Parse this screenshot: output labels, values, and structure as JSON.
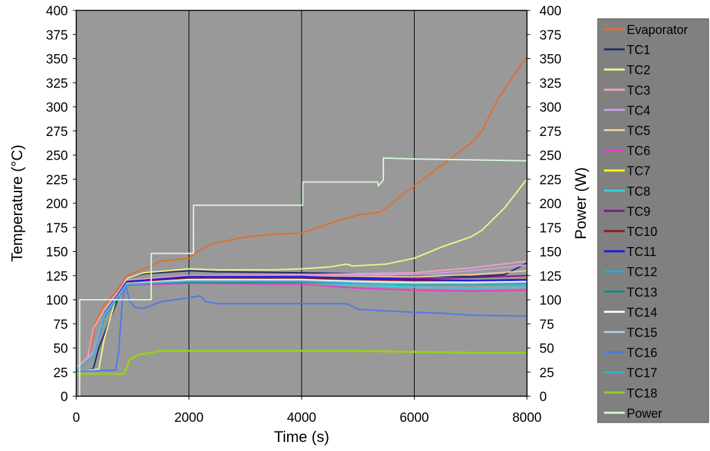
{
  "chart_data": {
    "type": "line",
    "xlabel": "Time (s)",
    "ylabel_left": "Temperature (°C)",
    "ylabel_right": "Power (W)",
    "xlim": [
      0,
      8000
    ],
    "ylim": [
      0,
      400
    ],
    "y2lim": [
      0,
      400
    ],
    "x_ticks": [
      0,
      2000,
      4000,
      6000,
      8000
    ],
    "y_ticks": [
      0,
      25,
      50,
      75,
      100,
      125,
      150,
      175,
      200,
      225,
      250,
      275,
      300,
      325,
      350,
      375,
      400
    ],
    "y2_ticks": [
      0,
      25,
      50,
      75,
      100,
      125,
      150,
      175,
      200,
      225,
      250,
      275,
      300,
      325,
      350,
      375,
      400
    ],
    "plot_background": "#999999",
    "grid": {
      "x": true,
      "y": false
    },
    "legend_position": "right",
    "legend_background": "#808080",
    "series": [
      {
        "name": "Evaporator",
        "color": "#e46c2a",
        "axis": "left",
        "x": [
          0,
          150,
          250,
          350,
          500,
          700,
          900,
          1200,
          1500,
          2000,
          2150,
          2400,
          3000,
          3500,
          4000,
          4300,
          4700,
          5000,
          5400,
          5600,
          6000,
          6500,
          7000,
          7200,
          7500,
          8000
        ],
        "y": [
          30,
          32,
          50,
          78,
          95,
          108,
          125,
          132,
          140,
          143,
          150,
          158,
          165,
          168,
          169,
          175,
          183,
          188,
          191,
          200,
          218,
          240,
          262,
          275,
          310,
          352
        ]
      },
      {
        "name": "TC1",
        "color": "#1f2a6b",
        "axis": "left",
        "x": [
          0,
          300,
          400,
          600,
          800,
          900,
          1200,
          2000,
          2500,
          4000,
          5000,
          6000,
          7000,
          7600,
          8000
        ],
        "y": [
          26,
          28,
          50,
          80,
          110,
          122,
          127,
          130,
          129,
          128,
          127,
          125,
          124,
          126,
          138
        ]
      },
      {
        "name": "TC2",
        "color": "#f2f28a",
        "axis": "left",
        "x": [
          0,
          400,
          500,
          700,
          900,
          1200,
          2000,
          2500,
          3500,
          4000,
          4500,
          4800,
          4900,
          5500,
          6000,
          6500,
          7000,
          7200,
          7600,
          8000
        ],
        "y": [
          26,
          28,
          60,
          100,
          122,
          128,
          132,
          131,
          131,
          132,
          134,
          137,
          135,
          137,
          143,
          155,
          165,
          172,
          195,
          225
        ]
      },
      {
        "name": "TC3",
        "color": "#f0a0c8",
        "axis": "left",
        "x": [
          0,
          200,
          300,
          500,
          900,
          2000,
          4000,
          5000,
          6000,
          7000,
          8000
        ],
        "y": [
          30,
          40,
          70,
          90,
          120,
          125,
          126,
          127,
          128,
          133,
          140
        ]
      },
      {
        "name": "TC4",
        "color": "#c8a0e6",
        "axis": "left",
        "x": [
          0,
          300,
          500,
          900,
          2000,
          4000,
          5000,
          6000,
          7000,
          8000
        ],
        "y": [
          28,
          45,
          85,
          118,
          124,
          124,
          126,
          126,
          130,
          136
        ]
      },
      {
        "name": "TC5",
        "color": "#f2c8a0",
        "axis": "left",
        "x": [
          0,
          300,
          500,
          900,
          2000,
          4000,
          5000,
          6000,
          7000,
          8000
        ],
        "y": [
          28,
          40,
          85,
          118,
          122,
          122,
          124,
          124,
          126,
          130
        ]
      },
      {
        "name": "TC6",
        "color": "#e63cc8",
        "axis": "left",
        "x": [
          0,
          300,
          500,
          900,
          2000,
          4000,
          5000,
          6000,
          7000,
          8000
        ],
        "y": [
          28,
          40,
          82,
          115,
          117,
          116,
          112,
          110,
          109,
          110
        ]
      },
      {
        "name": "TC7",
        "color": "#ffff00",
        "axis": "left",
        "x": [
          0,
          300,
          500,
          900,
          2000,
          4000,
          5000,
          6000,
          7000,
          8000
        ],
        "y": [
          28,
          40,
          84,
          117,
          120,
          120,
          118,
          117,
          116,
          117
        ]
      },
      {
        "name": "TC8",
        "color": "#2ed2e0",
        "axis": "left",
        "x": [
          0,
          300,
          500,
          900,
          2000,
          4000,
          5000,
          6000,
          7000,
          8000
        ],
        "y": [
          28,
          40,
          82,
          116,
          118,
          118,
          115,
          113,
          112,
          113
        ]
      },
      {
        "name": "TC9",
        "color": "#7a1a8a",
        "axis": "left",
        "x": [
          0,
          300,
          500,
          900,
          2000,
          4000,
          5000,
          6000,
          7000,
          8000
        ],
        "y": [
          28,
          40,
          84,
          118,
          123,
          123,
          123,
          122,
          123,
          125
        ]
      },
      {
        "name": "TC10",
        "color": "#8b1a1a",
        "axis": "left",
        "x": [
          0,
          300,
          500,
          900,
          2000,
          4000,
          5000,
          6000,
          7000,
          8000
        ],
        "y": [
          28,
          40,
          84,
          118,
          122,
          122,
          121,
          120,
          120,
          121
        ]
      },
      {
        "name": "TC11",
        "color": "#1a1ae6",
        "axis": "left",
        "x": [
          0,
          300,
          500,
          900,
          2000,
          4000,
          5000,
          6000,
          7000,
          8000
        ],
        "y": [
          28,
          40,
          85,
          119,
          124,
          124,
          122,
          121,
          120,
          120
        ]
      },
      {
        "name": "TC12",
        "color": "#2aa8d8",
        "axis": "left",
        "x": [
          0,
          300,
          500,
          900,
          2000,
          4000,
          5000,
          6000,
          7000,
          8000
        ],
        "y": [
          28,
          40,
          82,
          116,
          119,
          119,
          117,
          116,
          116,
          117
        ]
      },
      {
        "name": "TC13",
        "color": "#1a8a7a",
        "axis": "left",
        "x": [
          0,
          300,
          500,
          900,
          2000,
          4000,
          5000,
          6000,
          7000,
          8000
        ],
        "y": [
          28,
          40,
          82,
          116,
          118,
          118,
          117,
          116,
          116,
          117
        ]
      },
      {
        "name": "TC14",
        "color": "#f0ffff",
        "axis": "left",
        "x": [
          0,
          300,
          500,
          900,
          2000,
          4000,
          5000,
          6000,
          7000,
          8000
        ],
        "y": [
          28,
          40,
          84,
          117,
          121,
          121,
          119,
          118,
          118,
          119
        ]
      },
      {
        "name": "TC15",
        "color": "#a8c8ec",
        "axis": "left",
        "x": [
          0,
          300,
          500,
          900,
          2000,
          4000,
          5000,
          6000,
          7000,
          8000
        ],
        "y": [
          28,
          40,
          84,
          117,
          120,
          120,
          118,
          117,
          117,
          118
        ]
      },
      {
        "name": "TC16",
        "color": "#4a7ae6",
        "axis": "left",
        "x": [
          0,
          700,
          750,
          820,
          880,
          950,
          1050,
          1200,
          1500,
          2000,
          2200,
          2300,
          2500,
          3000,
          4000,
          4800,
          5000,
          6000,
          6500,
          7000,
          8000
        ],
        "y": [
          26,
          27,
          45,
          100,
          115,
          98,
          92,
          91,
          98,
          102,
          104,
          98,
          96,
          96,
          96,
          96,
          90,
          87,
          86,
          84,
          83
        ]
      },
      {
        "name": "TC17",
        "color": "#38b4c4",
        "axis": "left",
        "x": [
          0,
          300,
          500,
          900,
          2000,
          4000,
          5000,
          6000,
          7000,
          8000
        ],
        "y": [
          28,
          40,
          83,
          116,
          119,
          119,
          117,
          115,
          115,
          116
        ]
      },
      {
        "name": "TC18",
        "color": "#99cc22",
        "axis": "left",
        "x": [
          0,
          850,
          950,
          1100,
          1500,
          2000,
          3000,
          4000,
          5000,
          6000,
          7000,
          8000
        ],
        "y": [
          23,
          23,
          38,
          43,
          47,
          47,
          47,
          47,
          47,
          46,
          45,
          45
        ]
      },
      {
        "name": "Power",
        "color": "#d8f5d8",
        "axis": "right",
        "x": [
          0,
          60,
          61,
          1330,
          1331,
          2080,
          2081,
          4020,
          4021,
          5350,
          5360,
          5450,
          5451,
          6000,
          7000,
          8000
        ],
        "y": [
          0,
          0,
          100,
          100,
          148,
          148,
          198,
          198,
          222,
          222,
          218,
          224,
          247,
          246,
          245,
          244
        ]
      }
    ]
  }
}
